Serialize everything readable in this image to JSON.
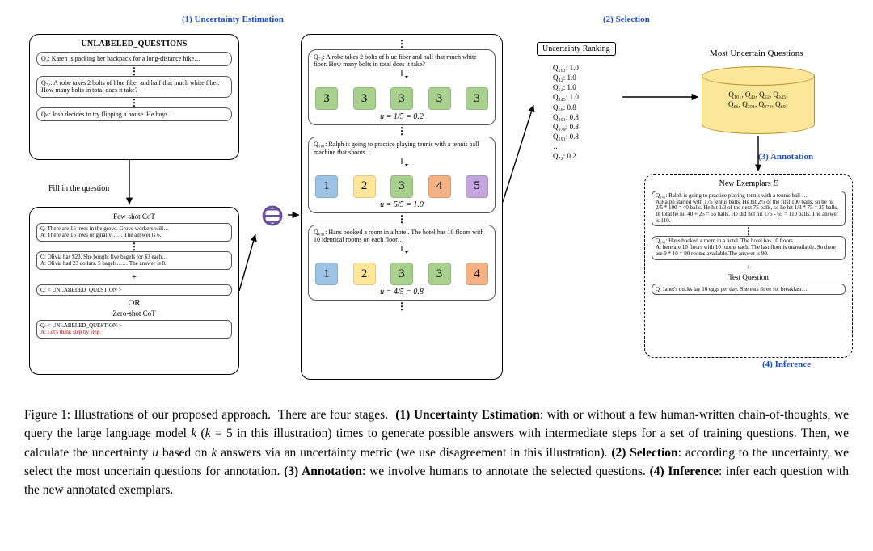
{
  "stages": {
    "s1": "(1) Uncertainty Estimation",
    "s2": "(2) Selection",
    "s3": "(3) Annotation",
    "s4": "(4) Inference"
  },
  "labels": {
    "unlabeled_title": "UNLABELED_QUESTIONS",
    "fill": "Fill in the question",
    "fewshot": "Few-shot CoT",
    "zeroshot": "Zero-shot CoT",
    "or": "OR",
    "plus": "+",
    "uncertainty_ranking": "Uncertainty Ranking",
    "most_uncertain": "Most Uncertain Questions",
    "new_exemplars": "New Exemplars E",
    "test_question": "Test Question"
  },
  "questions": {
    "q1": "Q₁: Karen is packing her backpack for a long-distance hike…",
    "q72": "Q₇₂: A robe takes 2 bolts of blue fiber and half that much white fiber. How many bolts in total does it take?",
    "qn": "Qₙ: Josh decides to try flipping a house.  He buys…",
    "fs1": "Q: There are 15 trees in the grove. Grove workers will…\nA: There are 15 trees originally…… The answer is 6.",
    "fs2": "Q: Olivia has $23. She bought five bagels for $3 each…\nA: Olivia had 23 dollars. 5 bagels…… The answer is 8.",
    "unl": "Q: < UNLABELED_QUESTION >",
    "zs": "Q: < UNLABELED_QUESTION >\nA: Let's think step by step.",
    "mid_q72": "Q₇₂: A robe takes 2 bolts of blue fiber and half that much white fiber. How many bolts in total does it take?",
    "mid_q101": "Q₁₀₁: Ralph is going to practice playing tennis with a tennis ball machine that shoots…",
    "mid_q691": "Q₆₉₁: Hans booked a room in a hotel. The hotel has 10 floors with 10 identical rooms on each floor…",
    "ex101": "Q₁₀₁: Ralph is going to practice playing tennis with a tennis ball …\nA:Ralph started with 175 tennis balls. He hit 2/5 of the first 100 balls, so he hit 2/5 * 100 = 40 balls. He hit 1/3 of the next 75 balls, so he hit 1/3 * 75 = 25 balls. In total he hit 40 + 25 = 65 balls. He did not hit 175 - 65 = 110 balls. The answer is 110.",
    "ex691": "Q₆₉₁: Hans booked a room in a hotel. The hotel has 10 floors …\nA: here are 10 floors with 10 rooms each. The last floor is unavailable. So there are 9 * 10 = 90 rooms available.The answer is 90.",
    "testq": "Q: Janet's ducks lay 16 eggs per day. She eats three for breakfast…"
  },
  "answers": {
    "row1": {
      "vals": [
        "3",
        "3",
        "3",
        "3",
        "3"
      ],
      "colors": [
        "#a9d18e",
        "#a9d18e",
        "#a9d18e",
        "#a9d18e",
        "#a9d18e"
      ],
      "u": "u = 1/5 = 0.2"
    },
    "row2": {
      "vals": [
        "1",
        "2",
        "3",
        "4",
        "5"
      ],
      "colors": [
        "#9dc3e6",
        "#ffe699",
        "#a9d18e",
        "#f4b183",
        "#c5a5dd"
      ],
      "u": "u = 5/5 = 1.0"
    },
    "row3": {
      "vals": [
        "1",
        "2",
        "3",
        "3",
        "4"
      ],
      "colors": [
        "#9dc3e6",
        "#ffe699",
        "#a9d18e",
        "#a9d18e",
        "#f4b183"
      ],
      "u": "u = 4/5 = 0.8"
    }
  },
  "ranking": [
    "Q₁₀₁: 1.0",
    "Q₄₂: 1.0",
    "Q₆₂: 1.0",
    "Q₃₄₅: 1.0",
    "Q₆₆: 0.8",
    "Q₃₀₁: 0.8",
    "Q₉₇₈: 0.8",
    "Q₆₉₁: 0.8",
    "…",
    "Q₇₂: 0.2"
  ],
  "cylinder": "Q₁₀₁, Q₄₂, Q₆₂, Q₃₄₅,\nQ₆₆, Q₃₀₁, Q₉₇₈, Q₆₉₁",
  "caption_plain": "Figure 1: Illustrations of our proposed approach. There are four stages. (1) Uncertainty Estimation: with or without a few human-written chain-of-thoughts, we query the large language model k (k = 5 in this illustration) times to generate possible answers with intermediate steps for a set of training questions. Then, we calculate the uncertainty u based on k answers via an uncertainty metric (we use disagreement in this illustration). (2) Selection: according to the uncertainty, we select the most uncertain questions for annotation. (3) Annotation: we involve humans to annotate the selected questions. (4) Inference: infer each question with the new annotated exemplars.",
  "colors": {
    "stage_label": "#1a4dcc",
    "cyl_fill": "#fbe69a",
    "cyl_stroke": "#b8902a",
    "arrow": "#000000",
    "oai": "#6b4ca0"
  }
}
